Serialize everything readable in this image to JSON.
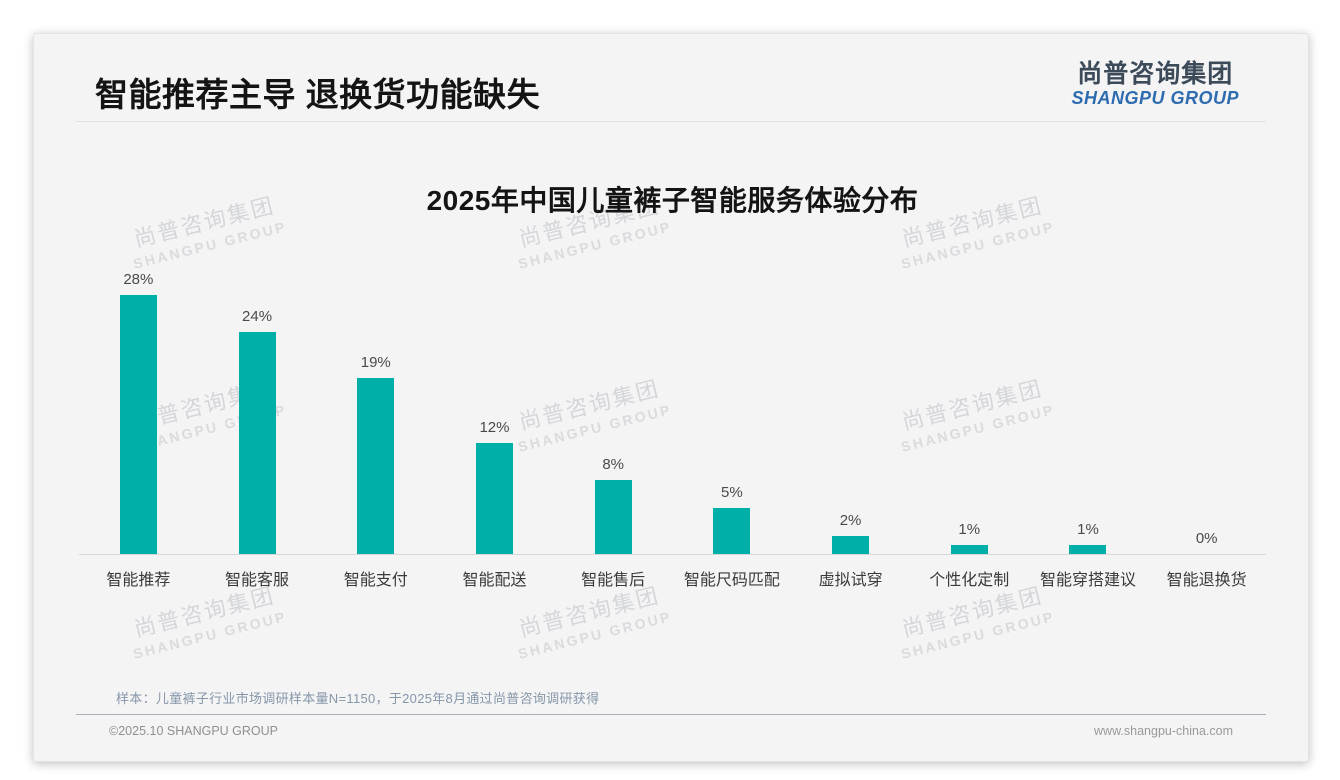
{
  "header": {
    "title": "智能推荐主导 退换货功能缺失",
    "logo_cn": "尚普咨询集团",
    "logo_en": "SHANGPU GROUP"
  },
  "watermark": {
    "line1": "尚普咨询集团",
    "line2": "SHANGPU GROUP"
  },
  "chart_data": {
    "type": "bar",
    "title": "2025年中国儿童裤子智能服务体验分布",
    "categories": [
      "智能推荐",
      "智能客服",
      "智能支付",
      "智能配送",
      "智能售后",
      "智能尺码匹配",
      "虚拟试穿",
      "个性化定制",
      "智能穿搭建议",
      "智能退换货"
    ],
    "values": [
      28,
      24,
      19,
      12,
      8,
      5,
      2,
      1,
      1,
      0
    ],
    "value_labels": [
      "28%",
      "24%",
      "19%",
      "12%",
      "8%",
      "5%",
      "2%",
      "1%",
      "1%",
      "0%"
    ],
    "unit": "%",
    "ylim": [
      0,
      30
    ],
    "grid": false,
    "legend": false,
    "bar_color": "#00B0A8"
  },
  "colors": {
    "bar_teal": "#00B0A8",
    "brand_blue": "#2E6CB0",
    "logo_dark": "#3D4A59",
    "note_blue_gray": "#8696A9"
  },
  "footnote": {
    "sample_note": "样本：儿童裤子行业市场调研样本量N=1150，于2025年8月通过尚普咨询调研获得"
  },
  "footer": {
    "left": "©2025.10 SHANGPU GROUP",
    "right": "www.shangpu-china.com"
  }
}
